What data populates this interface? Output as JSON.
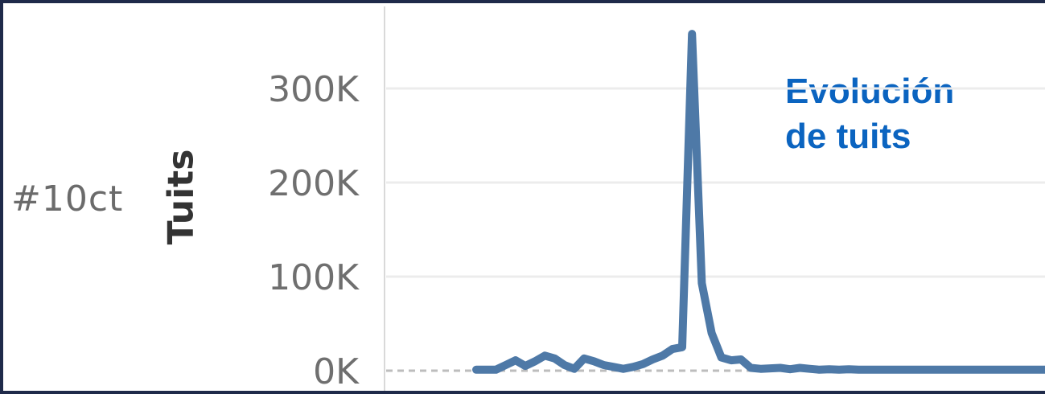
{
  "panel": {
    "row_label": "#10ct"
  },
  "chart_data": {
    "type": "line",
    "title_lines": [
      "Evolución",
      "de tuits"
    ],
    "xlabel": "",
    "ylabel": "Tuits",
    "ylim": [
      0,
      360000
    ],
    "yticks": [
      0,
      100000,
      200000,
      300000
    ],
    "ytick_labels": [
      "0K",
      "100K",
      "200K",
      "300K"
    ],
    "grid": true,
    "color": "#4e79a7",
    "series": [
      {
        "values": [
          1000,
          1000,
          1000,
          6000,
          11000,
          5000,
          10000,
          16000,
          13000,
          6000,
          2000,
          13000,
          10000,
          6000,
          4000,
          2000,
          4000,
          7000,
          12000,
          16000,
          23000,
          25000,
          358000,
          93000,
          40000,
          14000,
          11000,
          12000,
          3000,
          2000,
          2500,
          3000,
          1500,
          3000,
          2000,
          1000,
          1500,
          1000,
          1500,
          1000,
          1000,
          1000,
          1000,
          1000,
          1000,
          1000,
          1000,
          1000,
          1000,
          1000,
          1000,
          1000,
          1000,
          1000,
          1000,
          1000,
          1000,
          1000,
          1000
        ]
      }
    ]
  }
}
